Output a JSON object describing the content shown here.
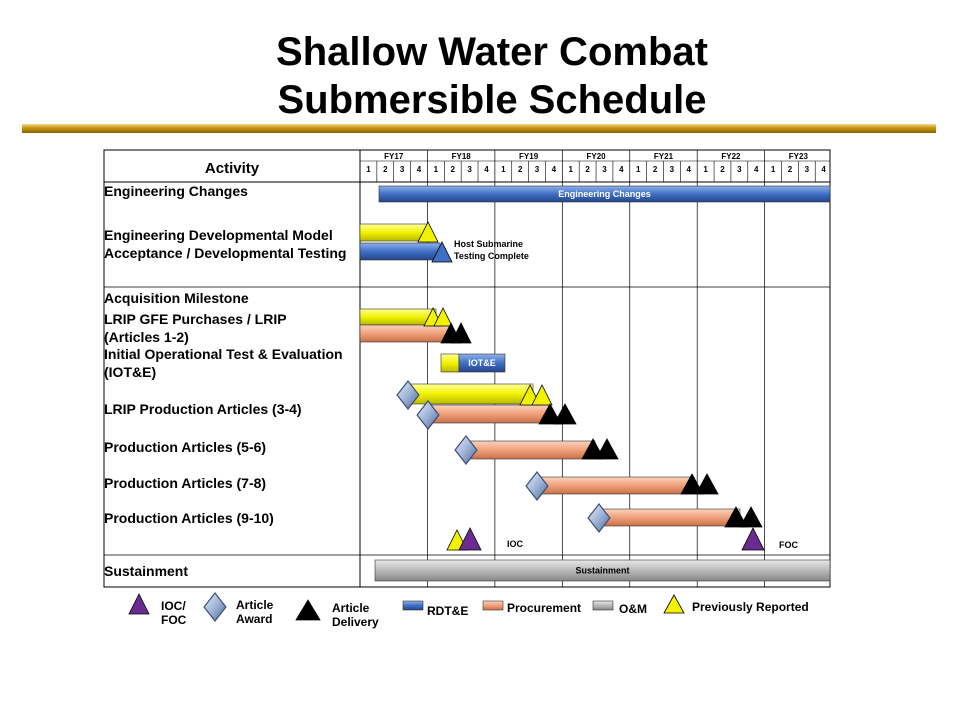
{
  "title_line1": "Shallow Water Combat",
  "title_line2": "Submersible Schedule",
  "activity_header": "Activity",
  "fiscal_years": [
    "FY17",
    "FY18",
    "FY19",
    "FY20",
    "FY21",
    "FY22",
    "FY23"
  ],
  "quarters": [
    "1",
    "2",
    "3",
    "4"
  ],
  "rows": {
    "eng_changes": "Engineering Changes",
    "edm_1": "Engineering Developmental Model",
    "edm_2": "Acceptance / Developmental Testing",
    "acq": "Acquisition  Milestone",
    "lrip_gfe_1": "LRIP GFE Purchases / LRIP",
    "lrip_gfe_2": "(Articles 1-2)",
    "iote_1": "Initial Operational Test & Evaluation",
    "iote_2": "(IOT&E)",
    "lrip_prod": "LRIP Production Articles (3-4)",
    "prod_56": "Production Articles (5-6)",
    "prod_78": "Production Articles (7-8)",
    "prod_910": "Production Articles (9-10)",
    "sustainment": "Sustainment"
  },
  "bar_labels": {
    "eng_changes": "Engineering Changes",
    "iote": "IOT&E",
    "sustainment": "Sustainment"
  },
  "notes": {
    "host_1": "Host Submarine",
    "host_2": "Testing Complete",
    "ioc": "IOC",
    "foc": "FOC"
  },
  "legend": {
    "ioc_foc_1": "IOC/",
    "ioc_foc_2": "FOC",
    "award_1": "Article",
    "award_2": "Award",
    "delivery_1": "Article",
    "delivery_2": "Delivery",
    "rdte": "RDT&E",
    "procurement": "Procurement",
    "om": "O&M",
    "previously": "Previously  Reported"
  },
  "colors": {
    "rdte": "#3f6fc4",
    "procurement": "#f0a07a",
    "om": "#b8b8b8",
    "previously_reported": "#f2f200",
    "ioc_foc": "#6a2c91",
    "award": "#9fb3d6",
    "delivery": "#000000",
    "title_rule": "#c8940c"
  },
  "chart_data": {
    "type": "gantt",
    "time_axis": {
      "start": "FY17 Q1",
      "end": "FY23 Q4",
      "units": "quarters"
    },
    "bars": [
      {
        "activity": "Engineering Changes",
        "funding": "RDT&E",
        "start": "FY17 Q2",
        "end": "FY23 Q4"
      },
      {
        "activity": "Engineering Developmental Model Acceptance / Developmental Testing",
        "funding": "Previously Reported",
        "start": "FY17 Q1",
        "end": "FY18 Q1"
      },
      {
        "activity": "Engineering Developmental Model Acceptance / Developmental Testing",
        "funding": "RDT&E",
        "start": "FY17 Q1",
        "end": "FY18 Q2"
      },
      {
        "activity": "LRIP GFE Purchases / LRIP (Articles 1-2)",
        "funding": "Previously Reported",
        "start": "FY17 Q1",
        "end": "FY18 Q2"
      },
      {
        "activity": "LRIP GFE Purchases / LRIP (Articles 1-2)",
        "funding": "Procurement",
        "start": "FY17 Q1",
        "end": "FY18 Q3"
      },
      {
        "activity": "Initial Operational Test & Evaluation (IOT&E)",
        "funding": "Previously Reported",
        "start": "FY18 Q2",
        "end": "FY18 Q2"
      },
      {
        "activity": "Initial Operational Test & Evaluation (IOT&E)",
        "funding": "RDT&E",
        "start": "FY18 Q3",
        "end": "FY19 Q1"
      },
      {
        "activity": "LRIP Production Articles (3-4)",
        "funding": "Previously Reported",
        "start": "FY17 Q4",
        "end": "FY19 Q4"
      },
      {
        "activity": "LRIP Production Articles (3-4)",
        "funding": "Procurement",
        "start": "FY18 Q1",
        "end": "FY19 Q4"
      },
      {
        "activity": "Production Articles (5-6)",
        "funding": "Procurement",
        "start": "FY18 Q3",
        "end": "FY20 Q2"
      },
      {
        "activity": "Production Articles (7-8)",
        "funding": "Procurement",
        "start": "FY19 Q4",
        "end": "FY21 Q4"
      },
      {
        "activity": "Production Articles (9-10)",
        "funding": "Procurement",
        "start": "FY20 Q2",
        "end": "FY22 Q2"
      },
      {
        "activity": "Sustainment",
        "funding": "O&M",
        "start": "FY17 Q2",
        "end": "FY23 Q4"
      }
    ],
    "milestones": [
      {
        "activity": "Engineering Developmental Model Acceptance / Developmental Testing",
        "type": "Previously Reported",
        "at": "FY18 Q1"
      },
      {
        "activity": "Engineering Developmental Model Acceptance / Developmental Testing",
        "type": "Host Submarine Testing Complete",
        "at": "FY18 Q2"
      },
      {
        "activity": "LRIP GFE Purchases / LRIP (Articles 1-2)",
        "type": "Previously Reported",
        "at": "FY18 Q1"
      },
      {
        "activity": "LRIP GFE Purchases / LRIP (Articles 1-2)",
        "type": "Article Delivery",
        "at": "FY18 Q2"
      },
      {
        "activity": "LRIP Production Articles (3-4)",
        "type": "Article Award",
        "at": "FY17 Q4"
      },
      {
        "activity": "LRIP Production Articles (3-4)",
        "type": "Previously Reported",
        "at": "FY19 Q3"
      },
      {
        "activity": "LRIP Production Articles (3-4)",
        "type": "Article Award",
        "at": "FY18 Q1"
      },
      {
        "activity": "LRIP Production Articles (3-4)",
        "type": "Article Delivery",
        "at": "FY19 Q4"
      },
      {
        "activity": "Production Articles (5-6)",
        "type": "Article Award",
        "at": "FY18 Q3"
      },
      {
        "activity": "Production Articles (5-6)",
        "type": "Article Delivery",
        "at": "FY20 Q2"
      },
      {
        "activity": "Production Articles (7-8)",
        "type": "Article Award",
        "at": "FY19 Q4"
      },
      {
        "activity": "Production Articles (7-8)",
        "type": "Article Delivery",
        "at": "FY21 Q4"
      },
      {
        "activity": "Production Articles (9-10)",
        "type": "Article Award",
        "at": "FY20 Q2"
      },
      {
        "activity": "Production Articles (9-10)",
        "type": "Article Delivery",
        "at": "FY22 Q2"
      },
      {
        "activity": "IOC",
        "type": "IOC/FOC",
        "at": "FY18 Q3"
      },
      {
        "activity": "FOC",
        "type": "IOC/FOC",
        "at": "FY22 Q3"
      }
    ]
  }
}
